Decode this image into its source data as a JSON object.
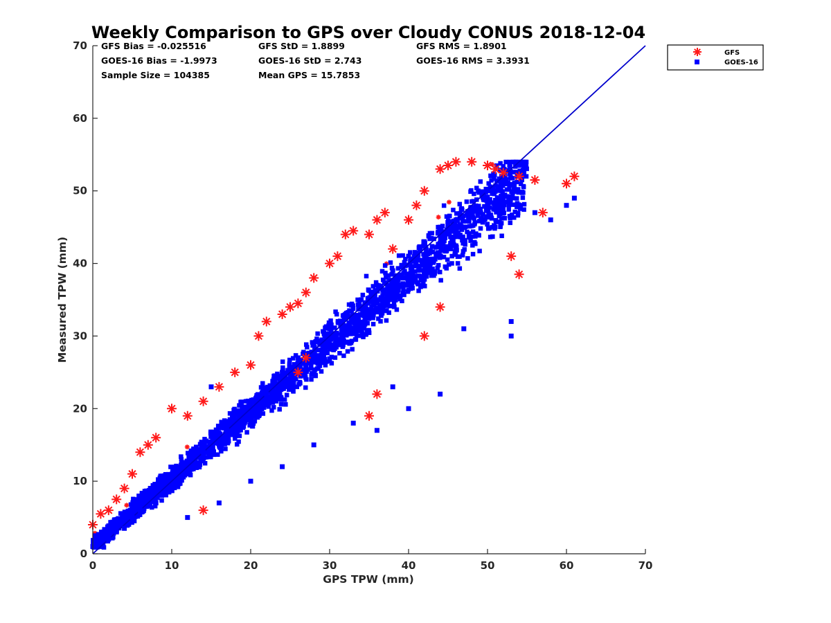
{
  "chart_data": {
    "type": "scatter",
    "title": "Weekly Comparison to GPS over Cloudy CONUS 2018-12-04",
    "xlabel": "GPS TPW (mm)",
    "ylabel": "Measured TPW (mm)",
    "xlim": [
      0,
      70
    ],
    "ylim": [
      0,
      70
    ],
    "xticks": [
      "0",
      "10",
      "20",
      "30",
      "40",
      "50",
      "60",
      "70"
    ],
    "yticks": [
      "0",
      "10",
      "20",
      "30",
      "40",
      "50",
      "60",
      "70"
    ],
    "grid": false,
    "legend_position": "outside-top-right",
    "stats": {
      "gfs_bias": "GFS Bias = -0.025516",
      "gfs_std": "GFS StD = 1.8899",
      "gfs_rms": "GFS RMS = 1.8901",
      "goes_bias": "GOES-16 Bias = -1.9973",
      "goes_std": "GOES-16 StD = 2.743",
      "goes_rms": "GOES-16 RMS = 3.3931",
      "sample_size": "Sample Size = 104385",
      "mean_gps": "Mean GPS = 15.7853"
    },
    "reference_line": {
      "x": [
        0,
        70
      ],
      "y": [
        0,
        70
      ],
      "color": "#0000cc"
    },
    "series": [
      {
        "name": "GFS",
        "marker": "asterisk",
        "color": "#ff1a1a",
        "x": [
          0,
          1,
          2,
          3,
          4,
          5,
          6,
          7,
          8,
          10,
          12,
          14,
          16,
          18,
          20,
          21,
          22,
          24,
          25,
          26,
          27,
          28,
          30,
          31,
          32,
          33,
          35,
          36,
          37,
          38,
          40,
          41,
          42,
          44,
          45,
          46,
          48,
          50,
          51,
          52,
          54,
          56,
          57,
          60,
          61,
          53,
          54,
          44,
          42,
          36,
          35,
          27,
          26,
          14
        ],
        "y": [
          4,
          5.5,
          6,
          7.5,
          9,
          11,
          14,
          15,
          16,
          20,
          19,
          21,
          23,
          25,
          26,
          30,
          32,
          33,
          34,
          34.5,
          36,
          38,
          40,
          41,
          44,
          44.5,
          44,
          46,
          47,
          42,
          46,
          48,
          50,
          53,
          53.5,
          54,
          54,
          53.5,
          53,
          52.5,
          52,
          51.5,
          47,
          51,
          52,
          41,
          38.5,
          34,
          30,
          22,
          19,
          27,
          25,
          6
        ]
      },
      {
        "name": "GOES-16",
        "marker": "square",
        "color": "#0000ff",
        "x": [
          0,
          1,
          2,
          3,
          4,
          5,
          6,
          8,
          10,
          12,
          14,
          15,
          17,
          20,
          22,
          24,
          26,
          28,
          30,
          32,
          34,
          36,
          38,
          40,
          42,
          44,
          46,
          48,
          50,
          52,
          54,
          56,
          58,
          60,
          61,
          53,
          53,
          47,
          44,
          40,
          38,
          36,
          33,
          28,
          24,
          20,
          16,
          12
        ],
        "y": [
          1,
          2,
          2,
          3,
          3.5,
          5,
          6,
          7,
          9,
          11,
          14,
          23,
          17,
          19,
          22,
          25,
          27,
          29,
          31,
          33,
          35,
          37,
          39,
          41,
          43,
          45,
          46,
          47,
          50,
          49,
          48,
          47,
          46,
          48,
          49,
          30,
          32,
          31,
          22,
          20,
          23,
          17,
          18,
          15,
          12,
          10,
          7,
          5
        ]
      }
    ]
  }
}
